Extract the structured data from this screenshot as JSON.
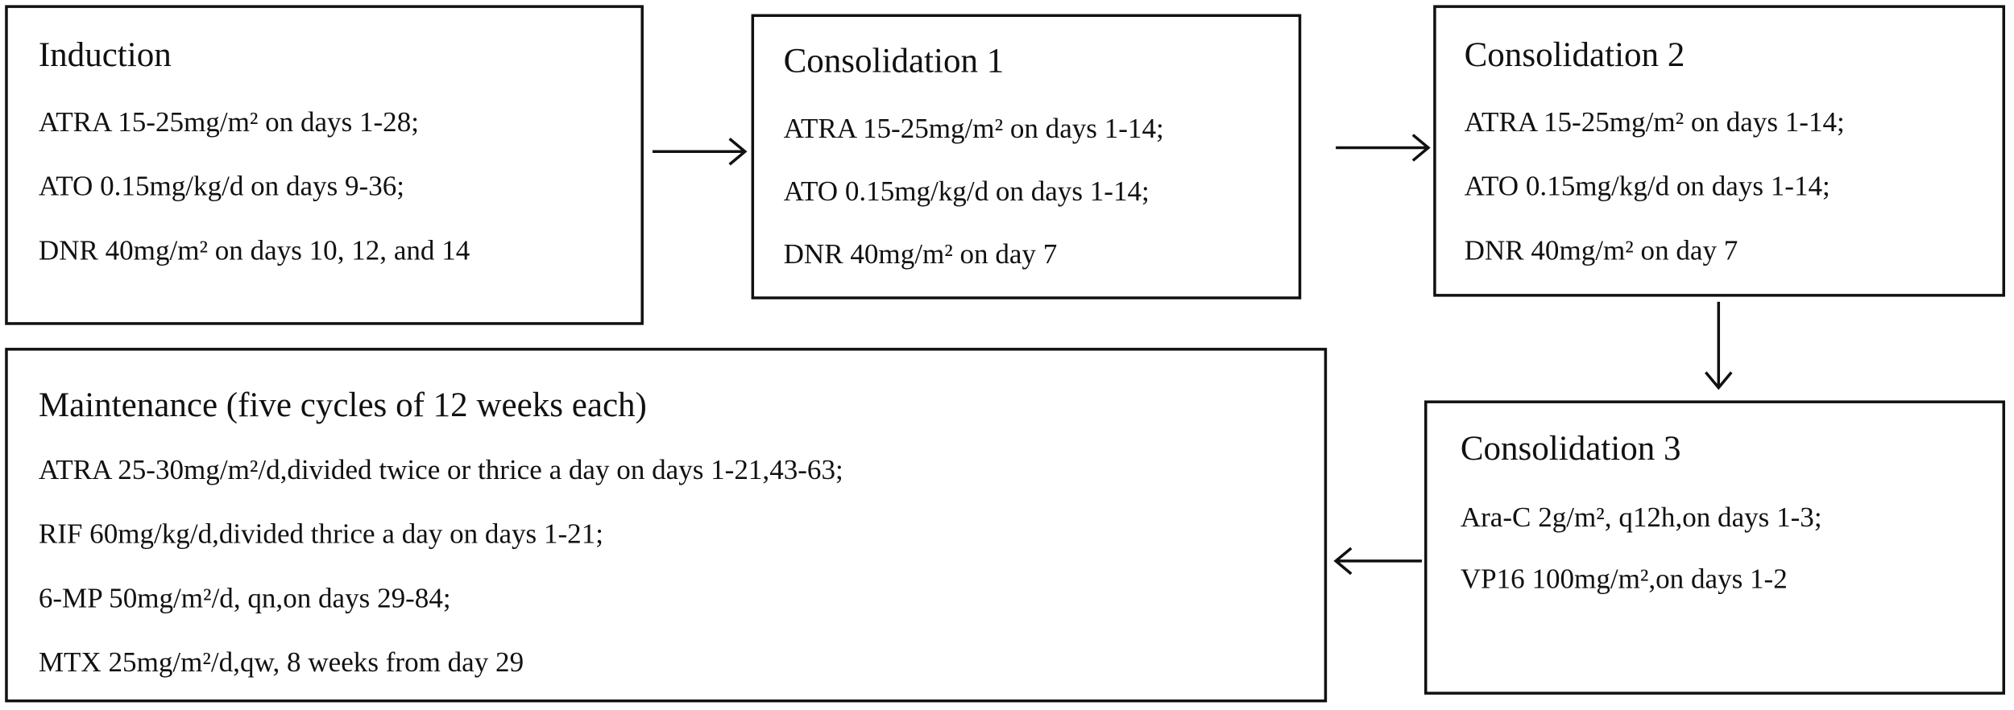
{
  "boxes": [
    {
      "title": "Induction",
      "lines": [
        "ATRA 15-25mg/m² on days 1-28;",
        "ATO 0.15mg/kg/d on days 9-36;",
        "DNR 40mg/m² on days 10, 12, and 14"
      ]
    },
    {
      "title": "Consolidation 1",
      "lines": [
        "ATRA 15-25mg/m² on days 1-14;",
        "ATO 0.15mg/kg/d on days 1-14;",
        "DNR 40mg/m² on day 7"
      ]
    },
    {
      "title": "Consolidation 2",
      "lines": [
        "ATRA 15-25mg/m² on days 1-14;",
        "ATO 0.15mg/kg/d on days 1-14;",
        "DNR 40mg/m² on day 7"
      ]
    },
    {
      "title": "Consolidation 3",
      "lines": [
        "Ara-C 2g/m², q12h,on days 1-3;",
        "VP16 100mg/m²,on days 1-2"
      ]
    },
    {
      "title": "Maintenance (five cycles of 12 weeks each)",
      "lines": [
        "ATRA 25-30mg/m²/d,divided twice or thrice a day on days 1-21,43-63;",
        "RIF 60mg/kg/d,divided thrice a day on days 1-21;",
        "6-MP 50mg/m²/d, qn,on days 29-84;",
        "MTX 25mg/m²/d,qw, 8 weeks from day 29"
      ]
    }
  ]
}
